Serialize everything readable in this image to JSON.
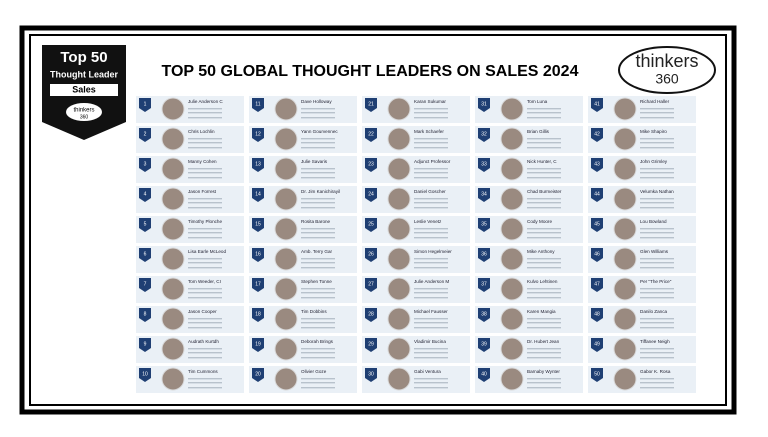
{
  "header": {
    "title": "TOP 50 GLOBAL THOUGHT LEADERS ON SALES 2024",
    "badge": {
      "line1": "Top 50",
      "line2": "Thought Leader",
      "line3": "Sales",
      "brand": "thinkers",
      "brand_num": "360"
    },
    "logo": {
      "text": "thinkers",
      "num": "360"
    }
  },
  "leaders": [
    {
      "rank": 1,
      "name": "Julie Anderson C"
    },
    {
      "rank": 2,
      "name": "Chris Lochlin"
    },
    {
      "rank": 3,
      "name": "Manny Cohen"
    },
    {
      "rank": 4,
      "name": "Jason Forrest"
    },
    {
      "rank": 5,
      "name": "Timothy Plonche"
    },
    {
      "rank": 6,
      "name": "Lisa Earle McLeod"
    },
    {
      "rank": 7,
      "name": "Tom Weeder, CI"
    },
    {
      "rank": 8,
      "name": "Jason Cooper"
    },
    {
      "rank": 9,
      "name": "Audrath Kurtdh"
    },
    {
      "rank": 10,
      "name": "Tim Cummons"
    },
    {
      "rank": 11,
      "name": "Dave Holloway"
    },
    {
      "rank": 12,
      "name": "Yann Gourvennec"
    },
    {
      "rank": 13,
      "name": "Julie Savaris"
    },
    {
      "rank": 14,
      "name": "Dr. Jim Kanichirayil"
    },
    {
      "rank": 15,
      "name": "Rosita Barone"
    },
    {
      "rank": 16,
      "name": "Amb. Terry Gar"
    },
    {
      "rank": 17,
      "name": "Stephen Tonne"
    },
    {
      "rank": 18,
      "name": "Tim Dobbins"
    },
    {
      "rank": 19,
      "name": "Deborah Brings"
    },
    {
      "rank": 20,
      "name": "Olivier Goze"
    },
    {
      "rank": 21,
      "name": "Karan Sukumar"
    },
    {
      "rank": 22,
      "name": "Mark Schaefer"
    },
    {
      "rank": 23,
      "name": "Adjunct Professor"
    },
    {
      "rank": 24,
      "name": "Daniel Goscher"
    },
    {
      "rank": 25,
      "name": "Leslie Venetz"
    },
    {
      "rank": 26,
      "name": "Simon Hegelmeier"
    },
    {
      "rank": 27,
      "name": "Julie Anderson M"
    },
    {
      "rank": 28,
      "name": "Michael Fausser"
    },
    {
      "rank": 29,
      "name": "Vladimir Bucina"
    },
    {
      "rank": 30,
      "name": "Gabi Ventura"
    },
    {
      "rank": 31,
      "name": "Tom Luna"
    },
    {
      "rank": 32,
      "name": "Brian Gillis"
    },
    {
      "rank": 33,
      "name": "Nick Hunter, C"
    },
    {
      "rank": 34,
      "name": "Chad Burmeister"
    },
    {
      "rank": 35,
      "name": "Cody Moore"
    },
    {
      "rank": 36,
      "name": "Mike Anthony"
    },
    {
      "rank": 37,
      "name": "Kulvo Lehtinen"
    },
    {
      "rank": 38,
      "name": "Karen Mangia"
    },
    {
      "rank": 39,
      "name": "Dr. Hubert Jean"
    },
    {
      "rank": 40,
      "name": "Barnaby Wynter"
    },
    {
      "rank": 41,
      "name": "Richard Haller"
    },
    {
      "rank": 42,
      "name": "Mike Shapiro"
    },
    {
      "rank": 43,
      "name": "John Grimley"
    },
    {
      "rank": 44,
      "name": "Velumka Nathan"
    },
    {
      "rank": 45,
      "name": "Lou Bowland"
    },
    {
      "rank": 46,
      "name": "Glen Williams"
    },
    {
      "rank": 47,
      "name": "Per \"The Price\""
    },
    {
      "rank": 48,
      "name": "Danilo Zanca"
    },
    {
      "rank": 49,
      "name": "Tiffanee Neigh"
    },
    {
      "rank": 50,
      "name": "Gabor K. Rosa"
    }
  ]
}
